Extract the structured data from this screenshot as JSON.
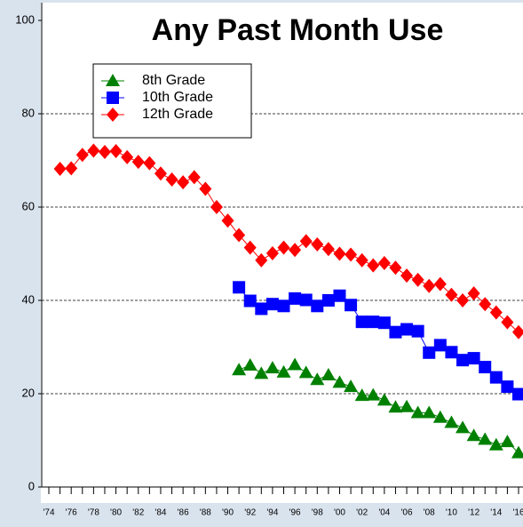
{
  "chart_data": {
    "type": "line",
    "title": "Any Past Month Use",
    "x": [
      1975,
      1976,
      1977,
      1978,
      1979,
      1980,
      1981,
      1982,
      1983,
      1984,
      1985,
      1986,
      1987,
      1988,
      1989,
      1990,
      1991,
      1992,
      1993,
      1994,
      1995,
      1996,
      1997,
      1998,
      1999,
      2000,
      2001,
      2002,
      2003,
      2004,
      2005,
      2006,
      2007,
      2008,
      2009,
      2010,
      2011,
      2012,
      2013,
      2014,
      2015,
      2016
    ],
    "series": [
      {
        "name": "8th Grade",
        "color": "#008000",
        "marker": "triangle",
        "values": [
          null,
          null,
          null,
          null,
          null,
          null,
          null,
          null,
          null,
          null,
          null,
          null,
          null,
          null,
          null,
          null,
          25.1,
          26.1,
          24.3,
          25.5,
          24.6,
          26.2,
          24.5,
          23.0,
          24.0,
          22.4,
          21.5,
          19.6,
          19.7,
          18.6,
          17.1,
          17.2,
          15.9,
          15.9,
          14.9,
          13.8,
          12.7,
          11.0,
          10.2,
          9.0,
          9.7,
          7.3
        ]
      },
      {
        "name": "10th Grade",
        "color": "#0000ff",
        "marker": "square",
        "values": [
          null,
          null,
          null,
          null,
          null,
          null,
          null,
          null,
          null,
          null,
          null,
          null,
          null,
          null,
          null,
          null,
          42.8,
          39.9,
          38.2,
          39.2,
          38.8,
          40.4,
          40.1,
          38.8,
          40.0,
          41.0,
          39.0,
          35.4,
          35.4,
          35.2,
          33.2,
          33.8,
          33.4,
          28.8,
          30.4,
          28.9,
          27.2,
          27.6,
          25.7,
          23.5,
          21.5,
          19.9
        ]
      },
      {
        "name": "12th Grade",
        "color": "#ff0000",
        "marker": "diamond",
        "values": [
          68.2,
          68.3,
          71.2,
          72.1,
          71.8,
          72.0,
          70.7,
          69.7,
          69.4,
          67.2,
          65.9,
          65.3,
          66.4,
          63.9,
          60.0,
          57.1,
          54.0,
          51.3,
          48.6,
          50.1,
          51.3,
          50.8,
          52.7,
          52.0,
          51.0,
          50.0,
          49.8,
          48.6,
          47.5,
          48.0,
          47.0,
          45.3,
          44.4,
          43.1,
          43.5,
          41.2,
          40.0,
          41.5,
          39.2,
          37.4,
          35.3,
          33.2
        ]
      }
    ],
    "xlim": [
      1974,
      2016
    ],
    "xticks": [
      {
        "value": 1974,
        "label": "'74"
      },
      {
        "value": 1976,
        "label": "'76"
      },
      {
        "value": 1978,
        "label": "'78"
      },
      {
        "value": 1980,
        "label": "'80"
      },
      {
        "value": 1982,
        "label": "'82"
      },
      {
        "value": 1984,
        "label": "'84"
      },
      {
        "value": 1986,
        "label": "'86"
      },
      {
        "value": 1988,
        "label": "'88"
      },
      {
        "value": 1990,
        "label": "'90"
      },
      {
        "value": 1992,
        "label": "'92"
      },
      {
        "value": 1994,
        "label": "'94"
      },
      {
        "value": 1996,
        "label": "'96"
      },
      {
        "value": 1998,
        "label": "'98"
      },
      {
        "value": 2000,
        "label": "'00"
      },
      {
        "value": 2002,
        "label": "'02"
      },
      {
        "value": 2004,
        "label": "'04"
      },
      {
        "value": 2006,
        "label": "'06"
      },
      {
        "value": 2008,
        "label": "'08"
      },
      {
        "value": 2010,
        "label": "'10"
      },
      {
        "value": 2012,
        "label": "'12"
      },
      {
        "value": 2014,
        "label": "'14"
      },
      {
        "value": 2016,
        "label": "'16"
      }
    ],
    "ylim": [
      0,
      100
    ],
    "yticks": [
      0,
      20,
      40,
      60,
      80,
      100
    ],
    "grid": true,
    "legend": "upper left"
  }
}
